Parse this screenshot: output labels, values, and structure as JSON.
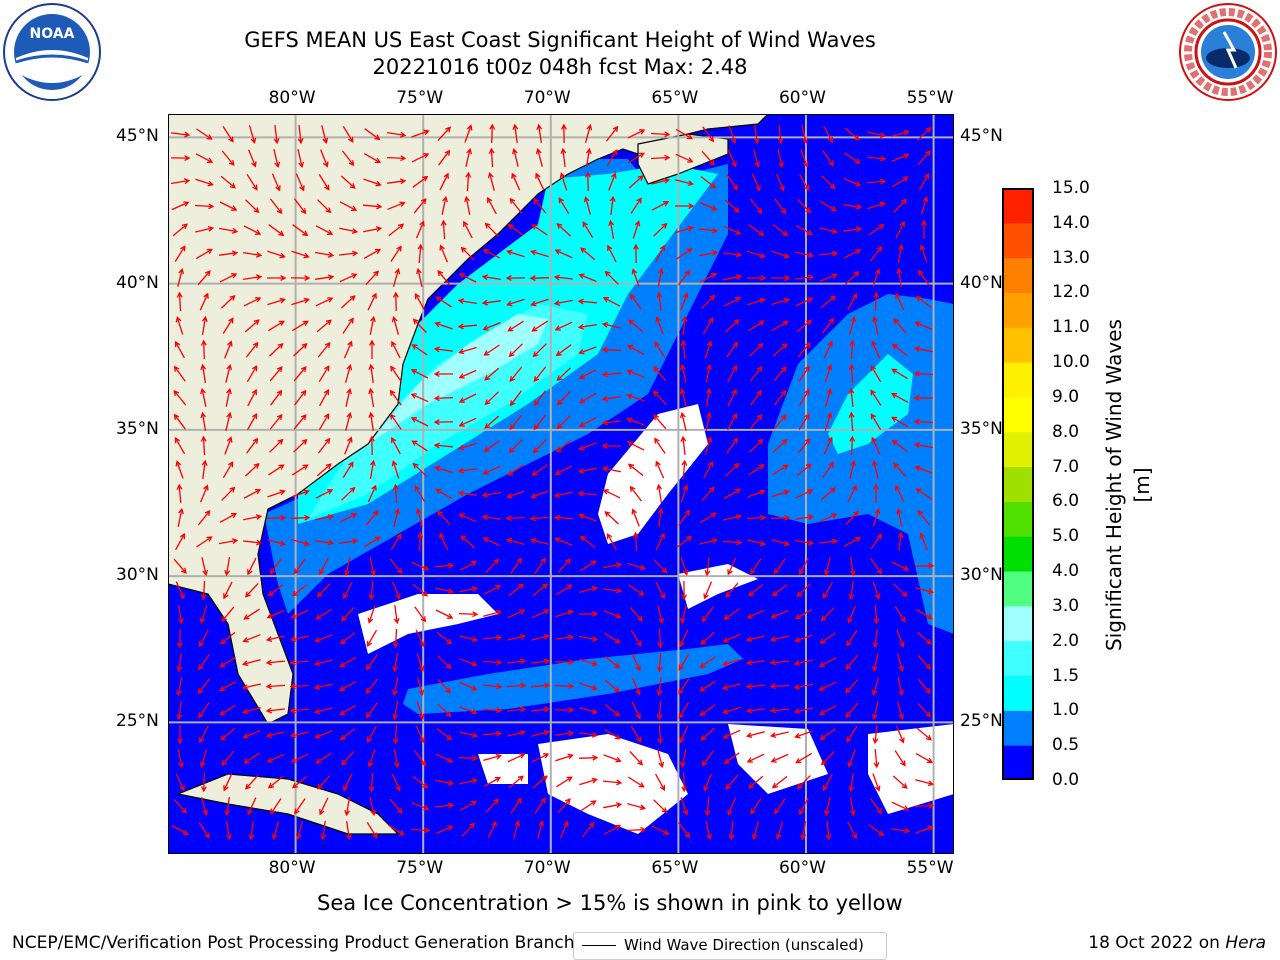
{
  "title": {
    "line1": "GEFS MEAN US East Coast Significant Height of Wind Waves",
    "line2": "20221016 t00z 048h fcst    Max: 2.48"
  },
  "logos": {
    "left": "NOAA",
    "right": "NATIONAL WEATHER SERVICE"
  },
  "map": {
    "lon_ticks": [
      "80°W",
      "75°W",
      "70°W",
      "65°W",
      "60°W",
      "55°W"
    ],
    "lat_ticks": [
      "45°N",
      "40°N",
      "35°N",
      "30°N",
      "25°N"
    ],
    "lon_values": [
      -80,
      -75,
      -70,
      -65,
      -60,
      -55
    ],
    "lat_values": [
      45,
      40,
      35,
      30,
      25
    ],
    "extent": {
      "lon": [
        -85,
        -54.2
      ],
      "lat": [
        20.5,
        45.8
      ]
    },
    "colors": {
      "land": "#eeeedc",
      "ocean_low": "#0000ff",
      "ocean_mid": "#0080ff",
      "ocean_high": "#00ffff",
      "ocean_top": "#a0ffff",
      "arrow": "#ff0000",
      "grid": "#b0b0b0"
    },
    "legend": "Wind Wave Direction (unscaled)"
  },
  "colorbar": {
    "ticks": [
      "15.0",
      "14.0",
      "13.0",
      "12.0",
      "11.0",
      "10.0",
      "9.0",
      "8.0",
      "7.0",
      "6.0",
      "5.0",
      "4.0",
      "3.0",
      "2.0",
      "1.5",
      "1.0",
      "0.5",
      "0.0"
    ],
    "levels": [
      0.0,
      0.5,
      1.0,
      1.5,
      2.0,
      3.0,
      4.0,
      5.0,
      6.0,
      7.0,
      8.0,
      9.0,
      10.0,
      11.0,
      12.0,
      13.0,
      14.0,
      15.0
    ],
    "colors": [
      "#0000ff",
      "#0080ff",
      "#00ffff",
      "#40ffff",
      "#a0ffff",
      "#50ff80",
      "#00e000",
      "#50e000",
      "#a0e000",
      "#e0f000",
      "#ffff00",
      "#fff000",
      "#ffc000",
      "#ffa000",
      "#ff8000",
      "#ff5000",
      "#ff2000"
    ],
    "label": "Significant Height of Wind Waves [m]"
  },
  "subtitle": "Sea Ice Concentration > 15% is shown in pink to yellow",
  "footer": {
    "left": "NCEP/EMC/Verification Post Processing Product Generation Branch",
    "right_date": "18 Oct 2022 on ",
    "right_machine": "Hera"
  }
}
